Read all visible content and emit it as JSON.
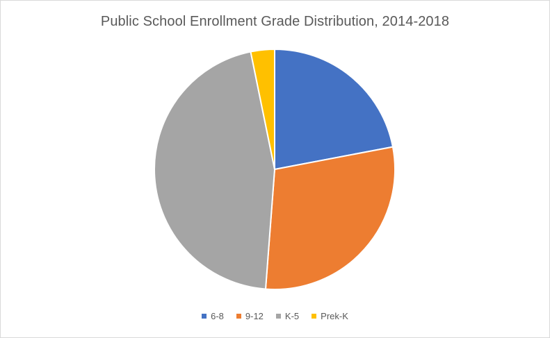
{
  "chart_data": {
    "type": "pie",
    "title": "Public School Enrollment Grade Distribution, 2014-2018",
    "categories": [
      "6-8",
      "9-12",
      "K-5",
      "Prek-K"
    ],
    "values": [
      22.0,
      29.2,
      45.6,
      3.2
    ],
    "colors": [
      "#4472c4",
      "#ed7d31",
      "#a5a5a5",
      "#ffc000"
    ],
    "legend_position": "bottom",
    "start_angle": "12 o'clock",
    "direction": "clockwise"
  }
}
